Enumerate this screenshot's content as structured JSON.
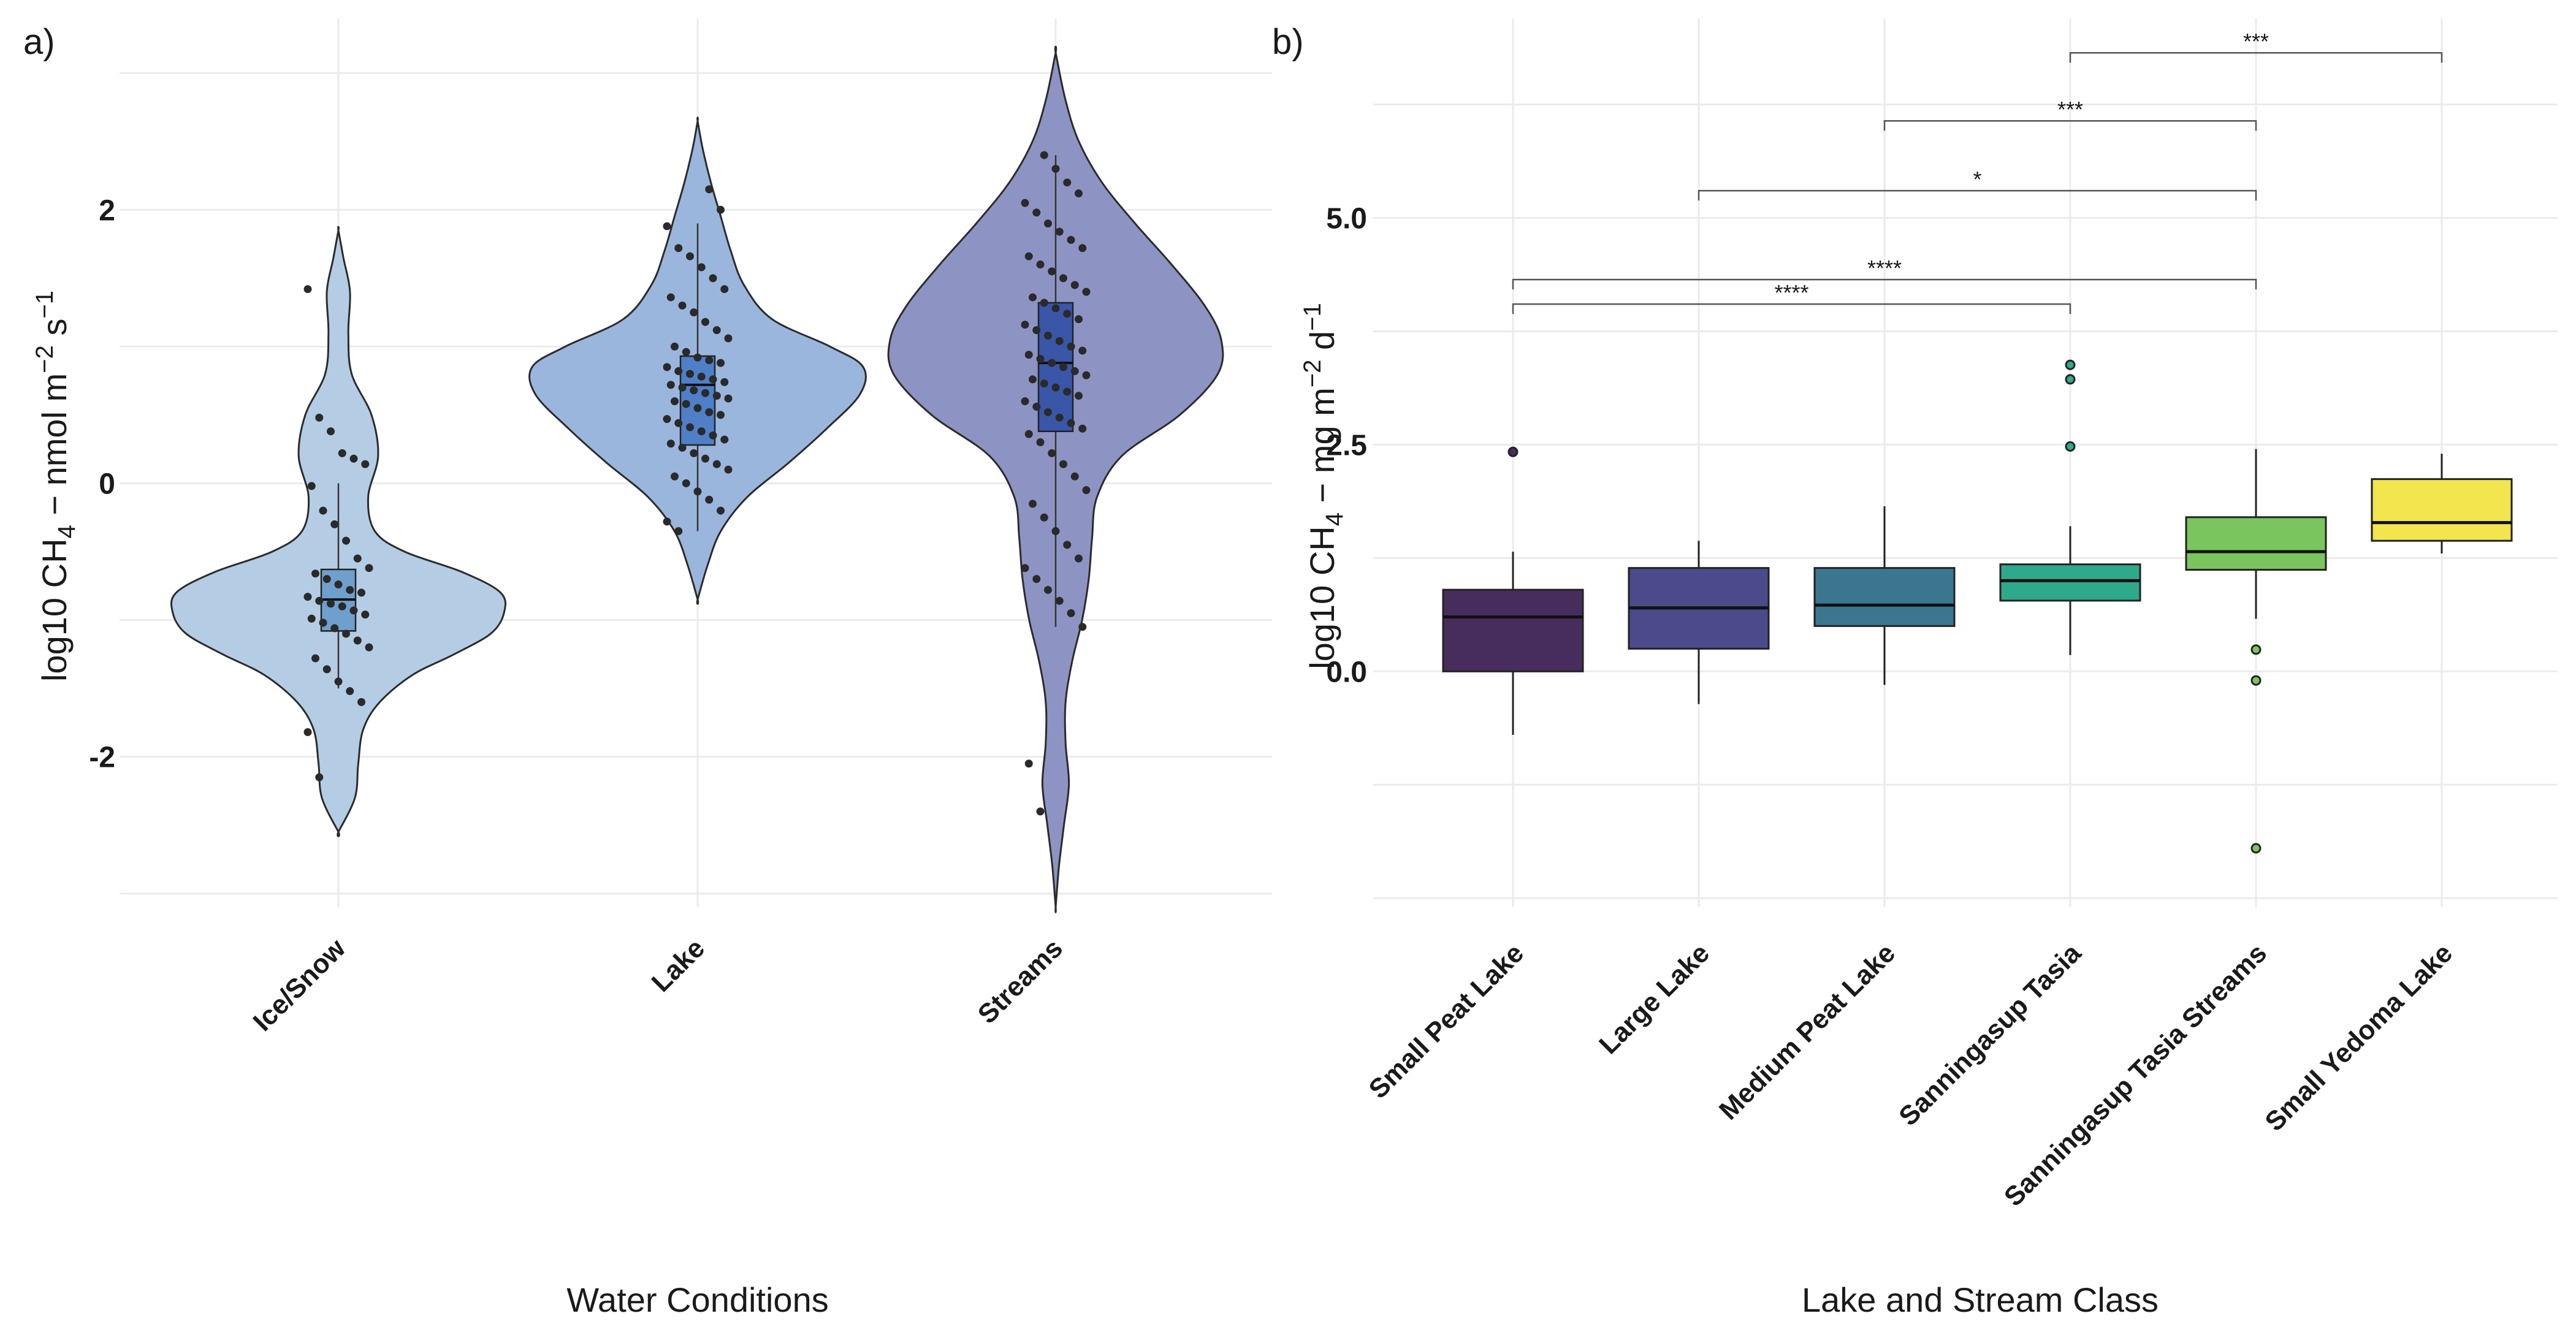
{
  "chart_data": [
    {
      "type": "violin",
      "panel_label": "a)",
      "xlabel": "Water Conditions",
      "ylabel": "log10 CH₄ − nmol m⁻² s⁻¹",
      "ylabel_parts": {
        "pre": "log10 CH",
        "sub": "4",
        "mid": " − nmol m",
        "sup1": "−2",
        "mid2": " s",
        "sup2": "−1"
      },
      "ylim": [
        -3.1,
        3.4
      ],
      "yticks": [
        -2,
        0,
        2
      ],
      "categories": [
        "Ice/Snow",
        "Lake",
        "Streams"
      ],
      "series": [
        {
          "category": "Ice/Snow",
          "color": "#b4cde5",
          "box_color": "#6f9fcc",
          "violin_range": [
            -2.55,
            1.85
          ],
          "box": {
            "q1": -1.08,
            "median": -0.85,
            "q3": -0.63,
            "whisker_low": -1.5,
            "whisker_high": 0.0
          },
          "density": [
            [
              -2.55,
              0.0
            ],
            [
              -2.3,
              0.1
            ],
            [
              -2.05,
              0.12
            ],
            [
              -1.8,
              0.15
            ],
            [
              -1.6,
              0.25
            ],
            [
              -1.4,
              0.45
            ],
            [
              -1.25,
              0.7
            ],
            [
              -1.1,
              0.92
            ],
            [
              -0.95,
              1.0
            ],
            [
              -0.8,
              0.98
            ],
            [
              -0.65,
              0.75
            ],
            [
              -0.5,
              0.4
            ],
            [
              -0.35,
              0.22
            ],
            [
              -0.1,
              0.18
            ],
            [
              0.2,
              0.24
            ],
            [
              0.5,
              0.2
            ],
            [
              0.8,
              0.08
            ],
            [
              1.1,
              0.06
            ],
            [
              1.4,
              0.07
            ],
            [
              1.65,
              0.03
            ],
            [
              1.85,
              0.0
            ]
          ],
          "points": [
            1.42,
            0.48,
            0.38,
            0.22,
            0.18,
            0.14,
            -0.02,
            -0.2,
            -0.3,
            -0.42,
            -0.55,
            -0.62,
            -0.66,
            -0.7,
            -0.74,
            -0.78,
            -0.8,
            -0.83,
            -0.86,
            -0.88,
            -0.9,
            -0.93,
            -0.96,
            -0.99,
            -1.02,
            -1.06,
            -1.1,
            -1.15,
            -1.2,
            -1.28,
            -1.36,
            -1.45,
            -1.52,
            -1.6,
            -1.82,
            -2.15
          ]
        },
        {
          "category": "Lake",
          "color": "#9bb6dd",
          "box_color": "#4f7fc7",
          "violin_range": [
            -0.85,
            2.65
          ],
          "box": {
            "q1": 0.28,
            "median": 0.72,
            "q3": 0.93,
            "whisker_low": -0.35,
            "whisker_high": 1.9
          },
          "density": [
            [
              -0.85,
              0.0
            ],
            [
              -0.6,
              0.06
            ],
            [
              -0.35,
              0.14
            ],
            [
              -0.1,
              0.3
            ],
            [
              0.15,
              0.55
            ],
            [
              0.4,
              0.78
            ],
            [
              0.65,
              0.98
            ],
            [
              0.85,
              1.0
            ],
            [
              1.0,
              0.8
            ],
            [
              1.2,
              0.45
            ],
            [
              1.45,
              0.28
            ],
            [
              1.7,
              0.2
            ],
            [
              1.95,
              0.14
            ],
            [
              2.2,
              0.08
            ],
            [
              2.45,
              0.03
            ],
            [
              2.65,
              0.0
            ]
          ],
          "points": [
            2.15,
            2.0,
            1.88,
            1.72,
            1.66,
            1.58,
            1.5,
            1.42,
            1.36,
            1.3,
            1.25,
            1.18,
            1.12,
            1.06,
            1.0,
            0.96,
            0.92,
            0.9,
            0.88,
            0.85,
            0.82,
            0.8,
            0.78,
            0.76,
            0.74,
            0.72,
            0.7,
            0.68,
            0.66,
            0.64,
            0.62,
            0.6,
            0.58,
            0.55,
            0.52,
            0.5,
            0.47,
            0.44,
            0.41,
            0.38,
            0.35,
            0.32,
            0.29,
            0.26,
            0.22,
            0.18,
            0.14,
            0.1,
            0.05,
            0.0,
            -0.06,
            -0.12,
            -0.2,
            -0.28,
            -0.35
          ]
        },
        {
          "category": "Streams",
          "color": "#8d94c4",
          "box_color": "#3a56a8",
          "violin_range": [
            -3.1,
            3.15
          ],
          "box": {
            "q1": 0.38,
            "median": 0.88,
            "q3": 1.32,
            "whisker_low": -1.05,
            "whisker_high": 2.4
          },
          "density": [
            [
              -3.1,
              0.0
            ],
            [
              -2.8,
              0.02
            ],
            [
              -2.5,
              0.05
            ],
            [
              -2.2,
              0.08
            ],
            [
              -1.9,
              0.06
            ],
            [
              -1.6,
              0.06
            ],
            [
              -1.3,
              0.1
            ],
            [
              -1.0,
              0.16
            ],
            [
              -0.7,
              0.2
            ],
            [
              -0.4,
              0.22
            ],
            [
              -0.1,
              0.25
            ],
            [
              0.2,
              0.4
            ],
            [
              0.5,
              0.75
            ],
            [
              0.8,
              0.98
            ],
            [
              1.05,
              1.0
            ],
            [
              1.3,
              0.9
            ],
            [
              1.6,
              0.7
            ],
            [
              1.9,
              0.48
            ],
            [
              2.2,
              0.28
            ],
            [
              2.5,
              0.14
            ],
            [
              2.8,
              0.06
            ],
            [
              3.15,
              0.0
            ]
          ],
          "points": [
            2.4,
            2.3,
            2.2,
            2.12,
            2.05,
            1.98,
            1.9,
            1.84,
            1.78,
            1.72,
            1.66,
            1.6,
            1.55,
            1.5,
            1.45,
            1.4,
            1.36,
            1.32,
            1.28,
            1.24,
            1.2,
            1.16,
            1.12,
            1.08,
            1.04,
            1.0,
            0.97,
            0.94,
            0.91,
            0.88,
            0.85,
            0.82,
            0.79,
            0.76,
            0.73,
            0.7,
            0.67,
            0.64,
            0.6,
            0.56,
            0.52,
            0.48,
            0.44,
            0.4,
            0.36,
            0.3,
            0.22,
            0.14,
            0.05,
            -0.05,
            -0.15,
            -0.25,
            -0.35,
            -0.45,
            -0.55,
            -0.62,
            -0.7,
            -0.78,
            -0.86,
            -0.95,
            -1.05,
            -2.05,
            -2.4
          ]
        }
      ]
    },
    {
      "type": "box",
      "panel_label": "b)",
      "xlabel": "Lake and Stream Class",
      "ylabel": "log10 CH₄ − mg m⁻² d⁻¹",
      "ylabel_parts": {
        "pre": "log10 CH",
        "sub": "4",
        "mid": " − mg m",
        "sup1": "−2",
        "mid2": " d",
        "sup2": "−1"
      },
      "ylim": [
        -2.6,
        7.2
      ],
      "yticks": [
        0.0,
        2.5,
        5.0
      ],
      "ytick_labels": [
        "0.0",
        "2.5",
        "5.0"
      ],
      "categories": [
        "Small Peat Lake",
        "Large Lake",
        "Medium Peat Lake",
        "Sanningasup Tasia",
        "Sanningasup Tasia Streams",
        "Small Yedoma Lake"
      ],
      "series": [
        {
          "category": "Small Peat Lake",
          "color": "#472d5d",
          "q1": 0.0,
          "median": 0.6,
          "q3": 0.9,
          "whisker_low": -0.7,
          "whisker_high": 1.32,
          "outliers": [
            2.42
          ]
        },
        {
          "category": "Large Lake",
          "color": "#4b4a8a",
          "q1": 0.25,
          "median": 0.7,
          "q3": 1.14,
          "whisker_low": -0.36,
          "whisker_high": 1.44,
          "outliers": []
        },
        {
          "category": "Medium Peat Lake",
          "color": "#3b7691",
          "q1": 0.5,
          "median": 0.73,
          "q3": 1.14,
          "whisker_low": -0.15,
          "whisker_high": 1.82,
          "outliers": []
        },
        {
          "category": "Sanningasup Tasia",
          "color": "#2fa98b",
          "q1": 0.78,
          "median": 1.0,
          "q3": 1.18,
          "whisker_low": 0.18,
          "whisker_high": 1.6,
          "outliers": [
            3.38,
            3.22,
            2.48
          ]
        },
        {
          "category": "Sanningasup Tasia Streams",
          "color": "#7bc55e",
          "q1": 1.12,
          "median": 1.32,
          "q3": 1.7,
          "whisker_low": 0.58,
          "whisker_high": 2.45,
          "outliers": [
            0.24,
            -0.1,
            -1.95
          ]
        },
        {
          "category": "Small Yedoma Lake",
          "color": "#f2e54e",
          "q1": 1.44,
          "median": 1.64,
          "q3": 2.12,
          "whisker_low": 1.3,
          "whisker_high": 2.4,
          "outliers": []
        }
      ],
      "annotations": [
        {
          "from": 0,
          "to": 3,
          "label": "****",
          "y": 4.05
        },
        {
          "from": 0,
          "to": 4,
          "label": "****",
          "y": 4.32
        },
        {
          "from": 1,
          "to": 4,
          "label": "*",
          "y": 5.3
        },
        {
          "from": 2,
          "to": 4,
          "label": "***",
          "y": 6.07
        },
        {
          "from": 3,
          "to": 5,
          "label": "***",
          "y": 6.82
        }
      ]
    }
  ]
}
